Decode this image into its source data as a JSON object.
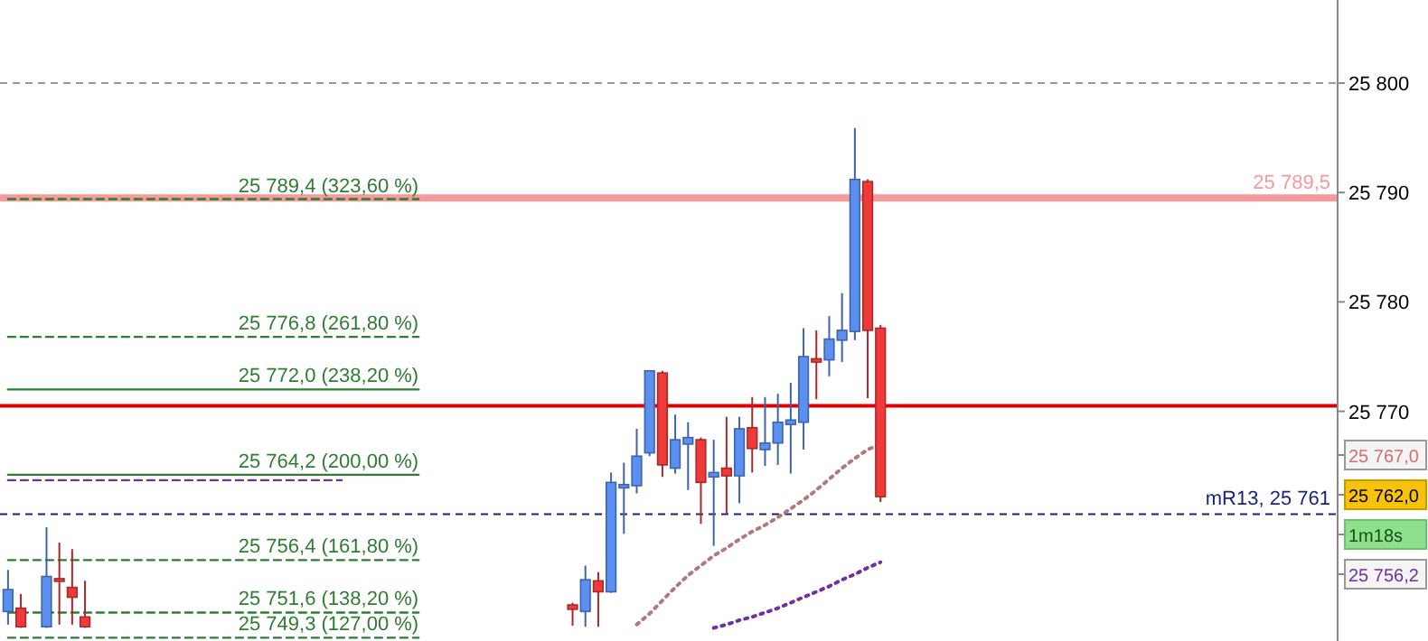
{
  "chart_data": {
    "type": "candlestick",
    "tick_labels": "y",
    "categories": [
      null,
      null,
      null,
      null,
      null,
      null,
      null,
      null,
      null,
      null,
      null,
      null,
      null,
      null,
      null,
      null,
      null,
      null,
      null,
      null,
      null,
      null,
      null,
      null,
      null,
      null,
      null,
      null,
      null,
      null,
      null,
      null,
      null,
      null,
      null,
      null,
      null,
      null,
      null,
      null,
      null,
      null,
      null,
      null,
      null,
      null,
      null,
      null,
      null,
      null,
      null,
      null,
      null,
      null,
      null,
      null,
      null,
      null,
      null,
      null,
      null,
      null,
      null,
      null,
      null,
      null,
      null,
      null,
      null,
      null,
      null,
      null,
      null,
      null,
      null,
      null,
      null,
      null,
      null,
      null,
      null,
      null,
      null,
      null,
      null,
      null,
      null,
      null,
      null,
      null,
      null,
      null,
      null,
      null,
      null,
      null,
      null,
      null,
      null,
      null,
      null,
      null,
      null,
      null
    ],
    "ohlc": [
      [
        25751.7,
        25755.5,
        25750.5,
        25753.7
      ],
      [
        25752.0,
        25753.3,
        25750.2,
        25750.3
      ],
      null,
      [
        25750.3,
        25759.4,
        25750.2,
        25754.9
      ],
      [
        25754.7,
        25758.0,
        25750.5,
        25754.6
      ],
      [
        25753.9,
        25757.4,
        25750.5,
        25753.0
      ],
      [
        25751.2,
        25754.5,
        25750.2,
        25750.3
      ],
      null,
      null,
      null,
      null,
      null,
      null,
      null,
      null,
      null,
      null,
      null,
      null,
      null,
      null,
      null,
      null,
      null,
      null,
      null,
      null,
      null,
      null,
      null,
      null,
      null,
      null,
      null,
      null,
      null,
      null,
      null,
      null,
      null,
      null,
      null,
      null,
      null,
      [
        25752.3,
        25752.5,
        25750.4,
        25751.9
      ],
      [
        25751.7,
        25755.9,
        25750.3,
        25754.6
      ],
      [
        25754.5,
        25755.3,
        25750.3,
        25753.5
      ],
      [
        25753.5,
        25764.4,
        25753.4,
        25763.5
      ],
      [
        25763.0,
        25765.3,
        25758.8,
        25763.3
      ],
      [
        25763.2,
        25768.4,
        25762.5,
        25765.9
      ],
      [
        25766.2,
        25773.7,
        25765.9,
        25773.7
      ],
      [
        25773.5,
        25773.7,
        25764.0,
        25765.1
      ],
      [
        25764.8,
        25769.7,
        25764.3,
        25767.4
      ],
      [
        25767.0,
        25769.0,
        25762.8,
        25767.6
      ],
      [
        25767.4,
        25767.6,
        25759.7,
        25763.5
      ],
      [
        25764.0,
        25767.4,
        25757.7,
        25764.4
      ],
      [
        25764.8,
        25769.5,
        25760.6,
        25764.1
      ],
      [
        25764.1,
        25769.5,
        25761.6,
        25768.4
      ],
      [
        25768.5,
        25771.3,
        25764.4,
        25766.6
      ],
      [
        25766.5,
        25771.3,
        25765.0,
        25767.1
      ],
      [
        25767.1,
        25771.6,
        25765.1,
        25769.0
      ],
      [
        25768.8,
        25772.6,
        25764.3,
        25769.2
      ],
      [
        25769.0,
        25777.6,
        25766.5,
        25775.0
      ],
      [
        25774.8,
        25777.4,
        25771.1,
        25774.5
      ],
      [
        25774.7,
        25778.7,
        25773.2,
        25776.6
      ],
      [
        25776.5,
        25780.8,
        25774.5,
        25777.4
      ],
      [
        25777.3,
        25795.9,
        25776.5,
        25791.2
      ],
      [
        25791.0,
        25791.2,
        25771.2,
        25777.4
      ],
      [
        25777.6,
        25777.9,
        25761.7,
        25762.2
      ],
      null,
      null,
      null,
      null,
      null,
      null,
      null,
      null,
      null,
      null,
      null,
      null,
      null,
      null,
      null,
      null,
      null,
      null,
      null,
      null,
      null,
      null,
      null,
      null,
      null,
      null,
      null,
      null,
      null,
      null,
      null,
      null,
      null,
      null,
      null
    ],
    "colors": [
      "#5b8ff0",
      "#f03a3a",
      null,
      "#5b8ff0",
      "#f03a3a",
      "#f03a3a",
      "#f03a3a",
      null,
      null,
      null,
      null,
      null,
      null,
      null,
      null,
      null,
      null,
      null,
      null,
      null,
      null,
      null,
      null,
      null,
      null,
      null,
      null,
      null,
      null,
      null,
      null,
      null,
      null,
      null,
      null,
      null,
      null,
      null,
      null,
      null,
      null,
      null,
      null,
      null,
      "#f03a3a",
      "#5b8ff0",
      "#f03a3a",
      "#5b8ff0",
      "#5b8ff0",
      "#5b8ff0",
      "#5b8ff0",
      "#f03a3a",
      "#5b8ff0",
      "#5b8ff0",
      "#f03a3a",
      "#5b8ff0",
      "#f03a3a",
      "#5b8ff0",
      "#f03a3a",
      "#5b8ff0",
      "#5b8ff0",
      "#5b8ff0",
      "#5b8ff0",
      "#f03a3a",
      "#5b8ff0",
      "#5b8ff0",
      "#5b8ff0",
      "#f03a3a",
      "#f03a3a",
      null,
      null,
      null,
      null,
      null,
      null,
      null,
      null,
      null,
      null,
      null,
      null,
      null,
      null,
      null,
      null,
      null,
      null,
      null,
      null,
      null,
      null,
      null,
      null,
      null,
      null,
      null,
      null,
      null,
      null,
      null,
      null,
      null,
      null,
      null
    ],
    "ylim": [
      25749.0,
      25807.6
    ],
    "yticks": [
      {
        "value": 25770,
        "label": "25 770"
      },
      {
        "value": 25780,
        "label": "25 780"
      },
      {
        "value": 25790,
        "label": "25 790"
      },
      {
        "value": 25800,
        "label": "25 800"
      }
    ],
    "ref_lines": [
      {
        "axis": "y",
        "value": 25800,
        "color": "#999999",
        "line_style": "dashed"
      },
      {
        "axis": "y",
        "value": 25789.5,
        "label": "25 789,5",
        "color": "#f59a9a"
      },
      {
        "axis": "y",
        "value": 25770.5,
        "color": "#e00000"
      },
      {
        "axis": "y",
        "value": 25760.6,
        "label": "mR13, 25 761",
        "color": "#1a237e",
        "line_style": "dashed"
      }
    ],
    "series": [
      {
        "type": "line",
        "name": "25 789,4 (323,60 %)",
        "color": "#2e7d32",
        "line_style": "dashed",
        "values": [
          25789.4,
          25789.4,
          25789.4,
          25789.4,
          25789.4,
          25789.4,
          25789.4,
          25789.4,
          25789.4,
          25789.4,
          25789.4,
          25789.4,
          25789.4,
          25789.4,
          25789.4,
          25789.4,
          25789.4,
          25789.4,
          25789.4,
          25789.4,
          25789.4,
          25789.4,
          25789.4,
          25789.4,
          25789.4,
          25789.4,
          25789.4,
          25789.4,
          25789.4,
          25789.4,
          25789.4,
          25789.4,
          25789.4,
          null,
          null,
          null,
          null,
          null,
          null,
          null,
          null,
          null,
          null,
          null,
          null,
          null,
          null,
          null,
          null,
          null,
          null,
          null,
          null,
          null,
          null,
          null,
          null,
          null,
          null,
          null,
          null,
          null,
          null,
          null,
          null,
          null,
          null,
          null,
          null,
          null,
          null,
          null,
          null,
          null,
          null,
          null,
          null,
          null,
          null,
          null,
          null,
          null,
          null,
          null,
          null,
          null,
          null,
          null,
          null,
          null,
          null,
          null,
          null,
          null,
          null,
          null,
          null,
          null,
          null,
          null,
          null,
          null,
          null,
          null
        ]
      },
      {
        "type": "line",
        "name": "25 776,8 (261,80 %)",
        "color": "#2e7d32",
        "line_style": "dashed",
        "values": [
          25776.8,
          25776.8,
          25776.8,
          25776.8,
          25776.8,
          25776.8,
          25776.8,
          25776.8,
          25776.8,
          25776.8,
          25776.8,
          25776.8,
          25776.8,
          25776.8,
          25776.8,
          25776.8,
          25776.8,
          25776.8,
          25776.8,
          25776.8,
          25776.8,
          25776.8,
          25776.8,
          25776.8,
          25776.8,
          25776.8,
          25776.8,
          25776.8,
          25776.8,
          25776.8,
          25776.8,
          25776.8,
          25776.8,
          null,
          null,
          null,
          null,
          null,
          null,
          null,
          null,
          null,
          null,
          null,
          null,
          null,
          null,
          null,
          null,
          null,
          null,
          null,
          null,
          null,
          null,
          null,
          null,
          null,
          null,
          null,
          null,
          null,
          null,
          null,
          null,
          null,
          null,
          null,
          null,
          null,
          null,
          null,
          null,
          null,
          null,
          null,
          null,
          null,
          null,
          null,
          null,
          null,
          null,
          null,
          null,
          null,
          null,
          null,
          null,
          null,
          null,
          null,
          null,
          null,
          null,
          null,
          null,
          null,
          null,
          null,
          null,
          null,
          null,
          null
        ]
      },
      {
        "type": "line",
        "name": "25 772,0 (238,20 %)",
        "color": "#2e7d32",
        "line_style": "solid",
        "values": [
          25772.0,
          25772.0,
          25772.0,
          25772.0,
          25772.0,
          25772.0,
          25772.0,
          25772.0,
          25772.0,
          25772.0,
          25772.0,
          25772.0,
          25772.0,
          25772.0,
          25772.0,
          25772.0,
          25772.0,
          25772.0,
          25772.0,
          25772.0,
          25772.0,
          25772.0,
          25772.0,
          25772.0,
          25772.0,
          25772.0,
          25772.0,
          25772.0,
          25772.0,
          25772.0,
          25772.0,
          25772.0,
          25772.0,
          null,
          null,
          null,
          null,
          null,
          null,
          null,
          null,
          null,
          null,
          null,
          null,
          null,
          null,
          null,
          null,
          null,
          null,
          null,
          null,
          null,
          null,
          null,
          null,
          null,
          null,
          null,
          null,
          null,
          null,
          null,
          null,
          null,
          null,
          null,
          null,
          null,
          null,
          null,
          null,
          null,
          null,
          null,
          null,
          null,
          null,
          null,
          null,
          null,
          null,
          null,
          null,
          null,
          null,
          null,
          null,
          null,
          null,
          null,
          null,
          null,
          null,
          null,
          null,
          null,
          null,
          null,
          null,
          null,
          null,
          null
        ]
      },
      {
        "type": "line",
        "name": "25 764,2 (200,00 %)",
        "color": "#2e7d32",
        "line_style": "solid",
        "values": [
          25764.2,
          25764.2,
          25764.2,
          25764.2,
          25764.2,
          25764.2,
          25764.2,
          25764.2,
          25764.2,
          25764.2,
          25764.2,
          25764.2,
          25764.2,
          25764.2,
          25764.2,
          25764.2,
          25764.2,
          25764.2,
          25764.2,
          25764.2,
          25764.2,
          25764.2,
          25764.2,
          25764.2,
          25764.2,
          25764.2,
          25764.2,
          25764.2,
          25764.2,
          25764.2,
          25764.2,
          25764.2,
          25764.2,
          null,
          null,
          null,
          null,
          null,
          null,
          null,
          null,
          null,
          null,
          null,
          null,
          null,
          null,
          null,
          null,
          null,
          null,
          null,
          null,
          null,
          null,
          null,
          null,
          null,
          null,
          null,
          null,
          null,
          null,
          null,
          null,
          null,
          null,
          null,
          null,
          null,
          null,
          null,
          null,
          null,
          null,
          null,
          null,
          null,
          null,
          null,
          null,
          null,
          null,
          null,
          null,
          null,
          null,
          null,
          null,
          null,
          null,
          null,
          null,
          null,
          null,
          null,
          null,
          null,
          null,
          null,
          null,
          null,
          null,
          null
        ]
      },
      {
        "type": "line",
        "name": "25 756,4 (161,80 %)",
        "color": "#2e7d32",
        "line_style": "dashed",
        "values": [
          25756.4,
          25756.4,
          25756.4,
          25756.4,
          25756.4,
          25756.4,
          25756.4,
          25756.4,
          25756.4,
          25756.4,
          25756.4,
          25756.4,
          25756.4,
          25756.4,
          25756.4,
          25756.4,
          25756.4,
          25756.4,
          25756.4,
          25756.4,
          25756.4,
          25756.4,
          25756.4,
          25756.4,
          25756.4,
          25756.4,
          25756.4,
          25756.4,
          25756.4,
          25756.4,
          25756.4,
          25756.4,
          25756.4,
          null,
          null,
          null,
          null,
          null,
          null,
          null,
          null,
          null,
          null,
          null,
          null,
          null,
          null,
          null,
          null,
          null,
          null,
          null,
          null,
          null,
          null,
          null,
          null,
          null,
          null,
          null,
          null,
          null,
          null,
          null,
          null,
          null,
          null,
          null,
          null,
          null,
          null,
          null,
          null,
          null,
          null,
          null,
          null,
          null,
          null,
          null,
          null,
          null,
          null,
          null,
          null,
          null,
          null,
          null,
          null,
          null,
          null,
          null,
          null,
          null,
          null,
          null,
          null,
          null,
          null,
          null,
          null,
          null,
          null,
          null
        ]
      },
      {
        "type": "line",
        "name": "25 751,6 (138,20 %)",
        "color": "#2e7d32",
        "line_style": "dashed",
        "values": [
          25751.6,
          25751.6,
          25751.6,
          25751.6,
          25751.6,
          25751.6,
          25751.6,
          25751.6,
          25751.6,
          25751.6,
          25751.6,
          25751.6,
          25751.6,
          25751.6,
          25751.6,
          25751.6,
          25751.6,
          25751.6,
          25751.6,
          25751.6,
          25751.6,
          25751.6,
          25751.6,
          25751.6,
          25751.6,
          25751.6,
          25751.6,
          25751.6,
          25751.6,
          25751.6,
          25751.6,
          25751.6,
          25751.6,
          null,
          null,
          null,
          null,
          null,
          null,
          null,
          null,
          null,
          null,
          null,
          null,
          null,
          null,
          null,
          null,
          null,
          null,
          null,
          null,
          null,
          null,
          null,
          null,
          null,
          null,
          null,
          null,
          null,
          null,
          null,
          null,
          null,
          null,
          null,
          null,
          null,
          null,
          null,
          null,
          null,
          null,
          null,
          null,
          null,
          null,
          null,
          null,
          null,
          null,
          null,
          null,
          null,
          null,
          null,
          null,
          null,
          null,
          null,
          null,
          null,
          null,
          null,
          null,
          null,
          null,
          null,
          null,
          null,
          null,
          null
        ]
      },
      {
        "type": "line",
        "name": "25 749,3 (127,00 %)",
        "color": "#2e7d32",
        "line_style": "dashed",
        "values": [
          25749.3,
          25749.3,
          25749.3,
          25749.3,
          25749.3,
          25749.3,
          25749.3,
          25749.3,
          25749.3,
          25749.3,
          25749.3,
          25749.3,
          25749.3,
          25749.3,
          25749.3,
          25749.3,
          25749.3,
          25749.3,
          25749.3,
          25749.3,
          25749.3,
          25749.3,
          25749.3,
          25749.3,
          25749.3,
          25749.3,
          25749.3,
          25749.3,
          25749.3,
          25749.3,
          25749.3,
          25749.3,
          25749.3,
          null,
          null,
          null,
          null,
          null,
          null,
          null,
          null,
          null,
          null,
          null,
          null,
          null,
          null,
          null,
          null,
          null,
          null,
          null,
          null,
          null,
          null,
          null,
          null,
          null,
          null,
          null,
          null,
          null,
          null,
          null,
          null,
          null,
          null,
          null,
          null,
          null,
          null,
          null,
          null,
          null,
          null,
          null,
          null,
          null,
          null,
          null,
          null,
          null,
          null,
          null,
          null,
          null,
          null,
          null,
          null,
          null,
          null,
          null,
          null,
          null,
          null,
          null,
          null,
          null,
          null,
          null,
          null,
          null,
          null,
          null
        ]
      },
      {
        "type": "line",
        "color": "#7030a0",
        "line_style": "dashed",
        "values": [
          25763.7,
          25763.7,
          25763.7,
          25763.7,
          25763.7,
          25763.7,
          25763.7,
          25763.7,
          25763.7,
          25763.7,
          25763.7,
          25763.7,
          25763.7,
          25763.7,
          25763.7,
          25763.7,
          25763.7,
          25763.7,
          25763.7,
          25763.7,
          25763.7,
          25763.7,
          25763.7,
          25763.7,
          25763.7,
          25763.7,
          25763.7,
          null,
          null,
          null,
          null,
          null,
          null,
          null,
          null,
          null,
          null,
          null,
          null,
          null,
          null,
          null,
          null,
          null,
          null,
          null,
          null,
          null,
          null,
          null,
          null,
          null,
          null,
          null,
          null,
          null,
          null,
          null,
          null,
          null,
          null,
          null,
          null,
          null,
          null,
          null,
          null,
          null,
          null,
          null,
          null,
          null,
          null,
          null,
          null,
          null,
          null,
          null,
          null,
          null,
          null,
          null,
          null,
          null,
          null,
          null,
          null,
          null,
          null,
          null,
          null,
          null,
          null,
          null,
          null,
          null,
          null,
          null,
          null,
          null,
          null,
          null,
          null,
          null
        ]
      },
      {
        "type": "line",
        "color": "#b07a7a",
        "line_style": "dotted",
        "values": [
          null,
          null,
          null,
          null,
          null,
          null,
          null,
          null,
          null,
          null,
          null,
          null,
          null,
          null,
          null,
          null,
          null,
          null,
          null,
          null,
          null,
          null,
          null,
          null,
          null,
          null,
          null,
          null,
          null,
          null,
          null,
          null,
          null,
          null,
          null,
          null,
          null,
          null,
          null,
          null,
          null,
          null,
          null,
          null,
          null,
          null,
          null,
          null,
          null,
          25750.5,
          25751.5,
          25752.7,
          25753.9,
          25755.0,
          25755.9,
          25756.8,
          25757.5,
          25758.3,
          25759.0,
          25759.6,
          25760.3,
          25761.1,
          25761.9,
          25762.8,
          25763.8,
          25764.8,
          25765.7,
          25766.5,
          25767.0,
          null,
          null,
          null,
          null,
          null,
          null,
          null,
          null,
          null,
          null,
          null,
          null,
          null,
          null,
          null,
          null,
          null,
          null,
          null,
          null,
          null,
          null,
          null,
          null,
          null,
          null,
          null,
          null,
          null,
          null,
          null,
          null,
          null,
          null,
          null
        ]
      },
      {
        "type": "line",
        "color": "#7030a0",
        "line_style": "dotted",
        "values": [
          null,
          null,
          null,
          null,
          null,
          null,
          null,
          null,
          null,
          null,
          null,
          null,
          null,
          null,
          null,
          null,
          null,
          null,
          null,
          null,
          null,
          null,
          null,
          null,
          null,
          null,
          null,
          null,
          null,
          null,
          null,
          null,
          null,
          null,
          null,
          null,
          null,
          null,
          null,
          null,
          null,
          null,
          null,
          null,
          null,
          null,
          null,
          null,
          null,
          null,
          null,
          null,
          null,
          null,
          null,
          25750.2,
          25750.5,
          25750.9,
          25751.2,
          25751.6,
          25752.0,
          25752.5,
          25753.0,
          25753.5,
          25754.0,
          25754.6,
          25755.1,
          25755.7,
          25756.2,
          null,
          null,
          null,
          null,
          null,
          null,
          null,
          null,
          null,
          null,
          null,
          null,
          null,
          null,
          null,
          null,
          null,
          null,
          null,
          null,
          null,
          null,
          null,
          null,
          null,
          null,
          null,
          null,
          null,
          null,
          null,
          null,
          null,
          null,
          null
        ]
      }
    ],
    "annotations": [
      "25 767,0",
      "25 762,0",
      "1m18s",
      "25 756,2"
    ]
  }
}
